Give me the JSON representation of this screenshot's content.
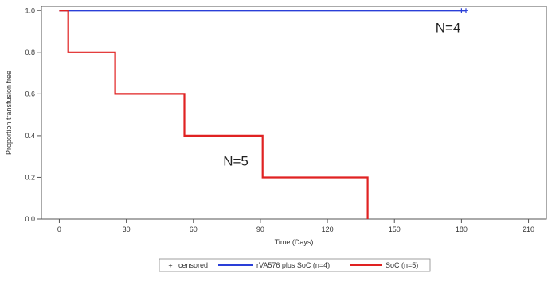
{
  "chart_data": {
    "type": "line",
    "subtype": "kaplan-meier-step",
    "xlabel": "Time (Days)",
    "ylabel": "Proportion transfusion free",
    "xlim": [
      -8,
      218
    ],
    "ylim": [
      0,
      1.02
    ],
    "xticks": [
      0,
      30,
      60,
      90,
      120,
      150,
      180,
      210
    ],
    "yticks": [
      0.0,
      0.2,
      0.4,
      0.6,
      0.8,
      1.0
    ],
    "ytick_labels": [
      "0.0",
      "0.2",
      "0.4",
      "0.6",
      "0.8",
      "1.0"
    ],
    "grid": false,
    "legend_placement": "bottom-center",
    "legend": {
      "censored_label": "censored",
      "censored_marker": "+"
    },
    "series": [
      {
        "name": "rVA576 plus SoC  (n=4)",
        "color": "#2a3fd8",
        "x": [
          0,
          182
        ],
        "y": [
          1.0,
          1.0
        ],
        "censored": [
          180,
          182
        ]
      },
      {
        "name": "SoC  (n=5)",
        "color": "#e02222",
        "x": [
          0,
          4,
          4,
          25,
          25,
          56,
          56,
          91,
          91,
          138,
          138
        ],
        "y": [
          1.0,
          1.0,
          0.8,
          0.8,
          0.6,
          0.6,
          0.4,
          0.4,
          0.2,
          0.2,
          0.0
        ],
        "censored": []
      }
    ],
    "annotations": [
      {
        "text": "N=4",
        "x": 174,
        "y": 0.92
      },
      {
        "text": "N=5",
        "x": 79,
        "y": 0.28
      }
    ]
  }
}
